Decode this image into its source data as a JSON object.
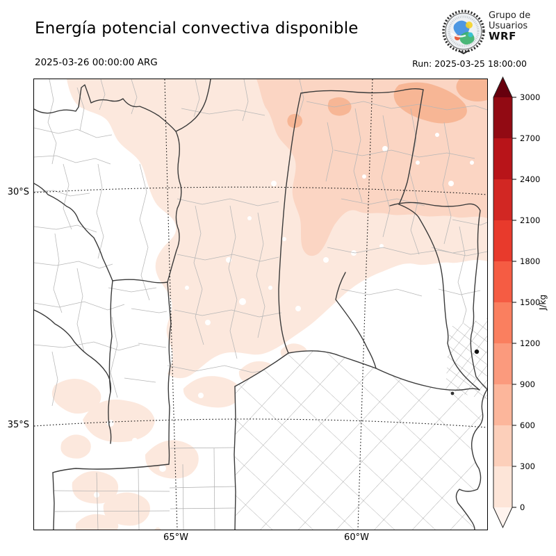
{
  "header": {
    "title": "Energía potencial convectiva disponible",
    "valid_time": "2025-03-26 00:00:00 ARG",
    "run_label": "Run: 2025-03-25 18:00:00",
    "logo": {
      "line1": "Grupo de",
      "line2": "Usuarios",
      "line3": "WRF"
    }
  },
  "map": {
    "x_ticks": [
      "65°W",
      "60°W"
    ],
    "y_ticks": [
      "30°S",
      "35°S"
    ],
    "frame_color": "#000000",
    "graticule_style": "dotted",
    "region": "central-eastern Argentina (Córdoba, Santa Fe, Buenos Aires, La Pampa, Cuyo, Santiago del Estero, Entre Ríos)"
  },
  "colorbar": {
    "unit": "J/kg",
    "ticks": [
      "0",
      "300",
      "600",
      "900",
      "1200",
      "1500",
      "1800",
      "2100",
      "2400",
      "2700",
      "3000"
    ],
    "extend": "both",
    "segment_colors_bottom_to_top": [
      "#fff4ef",
      "#fde5d8",
      "#fccfba",
      "#fcb69b",
      "#fb9a7d",
      "#fa7f5f",
      "#f55c43",
      "#e83a2c",
      "#d22723",
      "#b81419",
      "#920a13",
      "#67000d"
    ]
  },
  "chart_data": {
    "type": "heatmap",
    "title": "Energía potencial convectiva disponible",
    "units": "J/kg",
    "levels": [
      0,
      300,
      600,
      900,
      1200,
      1500,
      1800,
      2100,
      2400,
      2700,
      3000
    ],
    "colormap": "Reds, discrete, extend both (arrow above 3000 and below 0)",
    "legend_position": "right",
    "values_depicted": {
      "north_and_northeast_shading": "0-600 J/kg (light pink wash over Santiago del Estero, Chaco, Santa Fe, Córdoba, Entre Ríos)",
      "northeast_corner_maxima": "600-900 J/kg small patches",
      "southwest_mottled_patches": "0-300 J/kg over Mendoza/San Luis/La Pampa",
      "southeast_buenos_aires": "≈0 J/kg (unshaded)"
    }
  }
}
